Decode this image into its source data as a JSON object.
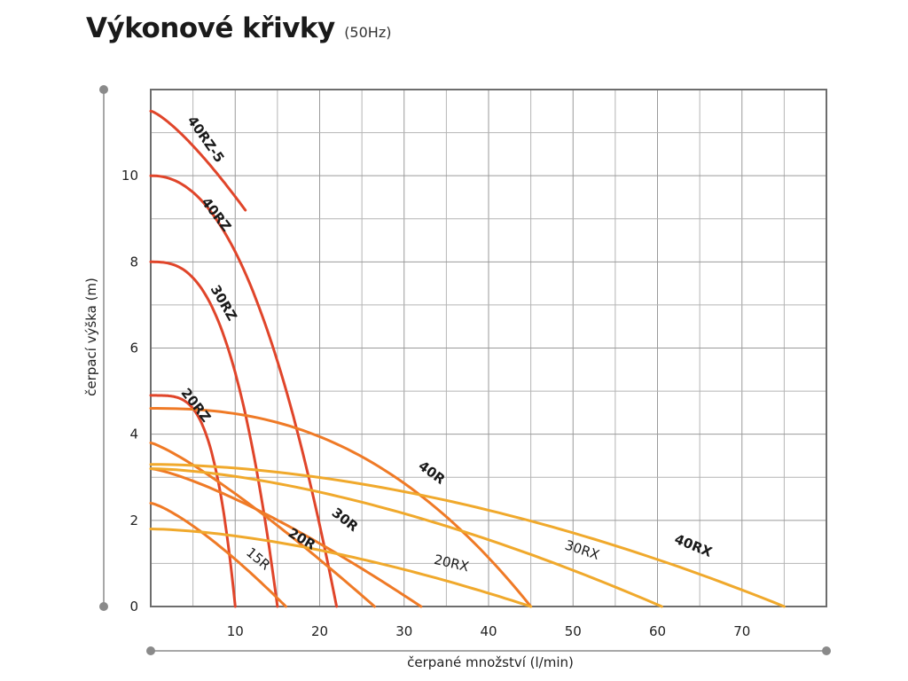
{
  "chart_data": {
    "type": "line",
    "title": "Výkonové křivky",
    "subtitle": "(50Hz)",
    "xlabel": "čerpané množství (l/min)",
    "ylabel": "čerpací výška (m)",
    "xlim": [
      0,
      80
    ],
    "ylim": [
      0,
      12
    ],
    "x_ticks": [
      10,
      20,
      30,
      40,
      50,
      60,
      70
    ],
    "y_ticks": [
      0,
      2,
      4,
      6,
      8,
      10
    ],
    "grid": true,
    "series": [
      {
        "name": "40RZ-5",
        "color": "#e0452a",
        "bold": true,
        "x": [
          0,
          11.2
        ],
        "y": [
          11.5,
          9.2
        ]
      },
      {
        "name": "40RZ",
        "color": "#e0452a",
        "bold": true,
        "x": [
          0,
          22.0
        ],
        "y": [
          10.0,
          0
        ]
      },
      {
        "name": "30RZ",
        "color": "#e0452a",
        "bold": true,
        "x": [
          0,
          15.0
        ],
        "y": [
          8.0,
          0
        ]
      },
      {
        "name": "20RZ",
        "color": "#e0452a",
        "bold": true,
        "x": [
          0,
          10.0
        ],
        "y": [
          4.9,
          0
        ]
      },
      {
        "name": "40R",
        "color": "#ef7a26",
        "bold": true,
        "x": [
          0,
          45.0
        ],
        "y": [
          4.6,
          0
        ]
      },
      {
        "name": "30R",
        "color": "#ef7a26",
        "bold": true,
        "x": [
          0,
          26.5
        ],
        "y": [
          3.8,
          0
        ]
      },
      {
        "name": "20R",
        "color": "#ef7a26",
        "bold": true,
        "x": [
          0,
          32.0
        ],
        "y": [
          3.2,
          0
        ]
      },
      {
        "name": "15R",
        "color": "#ef7a26",
        "bold": false,
        "x": [
          0,
          16.0
        ],
        "y": [
          2.4,
          0
        ]
      },
      {
        "name": "40RX",
        "color": "#f0a92c",
        "bold": true,
        "x": [
          0,
          75.0
        ],
        "y": [
          3.3,
          0
        ]
      },
      {
        "name": "30RX",
        "color": "#f0a92c",
        "bold": false,
        "x": [
          0,
          60.5
        ],
        "y": [
          3.2,
          0
        ]
      },
      {
        "name": "20RX",
        "color": "#f0a92c",
        "bold": false,
        "x": [
          0,
          45.0
        ],
        "y": [
          1.8,
          0
        ]
      }
    ]
  }
}
